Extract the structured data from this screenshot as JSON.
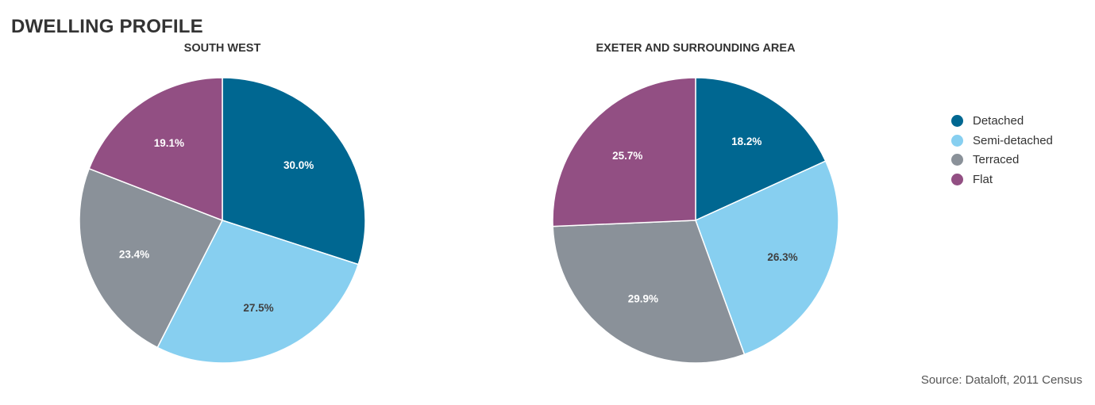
{
  "page": {
    "title": "DWELLING PROFILE",
    "source": "Source: Dataloft, 2011 Census"
  },
  "legend": [
    {
      "label": "Detached",
      "color": "#006791"
    },
    {
      "label": "Semi-detached",
      "color": "#87cff0"
    },
    {
      "label": "Terraced",
      "color": "#8a9199"
    },
    {
      "label": "Flat",
      "color": "#924f83"
    }
  ],
  "chart_data": [
    {
      "type": "pie",
      "title": "SOUTH WEST",
      "categories": [
        "Detached",
        "Semi-detached",
        "Terraced",
        "Flat"
      ],
      "values": [
        30.0,
        27.5,
        23.4,
        19.1
      ],
      "labels": [
        "30.0%",
        "27.5%",
        "23.4%",
        "19.1%"
      ],
      "label_colors": [
        "#ffffff",
        "#404040",
        "#ffffff",
        "#ffffff"
      ],
      "colors": [
        "#006791",
        "#87cff0",
        "#8a9199",
        "#924f83"
      ],
      "legend": "right"
    },
    {
      "type": "pie",
      "title": "EXETER AND SURROUNDING AREA",
      "categories": [
        "Detached",
        "Semi-detached",
        "Terraced",
        "Flat"
      ],
      "values": [
        18.2,
        26.3,
        29.9,
        25.7
      ],
      "labels": [
        "18.2%",
        "26.3%",
        "29.9%",
        "25.7%"
      ],
      "label_colors": [
        "#ffffff",
        "#404040",
        "#ffffff",
        "#ffffff"
      ],
      "colors": [
        "#006791",
        "#87cff0",
        "#8a9199",
        "#924f83"
      ],
      "legend": "right"
    }
  ]
}
